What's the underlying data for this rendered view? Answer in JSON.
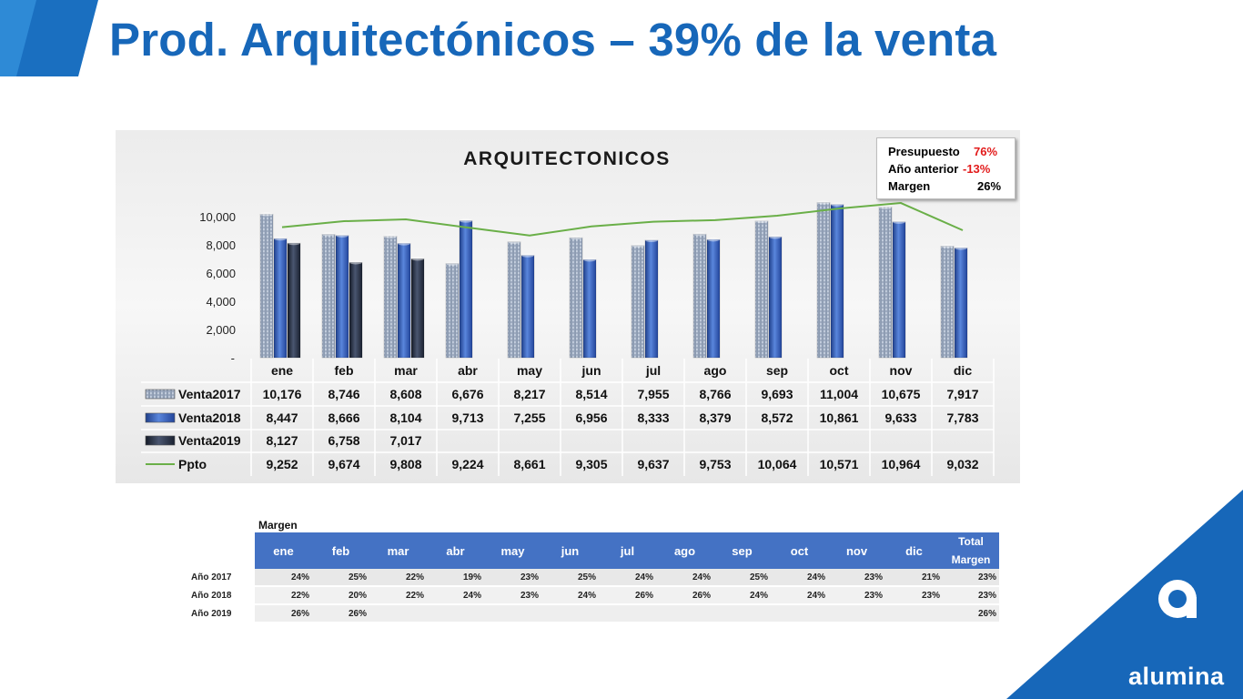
{
  "slide": {
    "title": "Prod. Arquitectónicos – 39% de la venta"
  },
  "kpi": {
    "rows": [
      {
        "label": "Presupuesto",
        "value": "76%",
        "value_color": "#e21b1b"
      },
      {
        "label": "Año anterior",
        "value": "-13%",
        "value_color": "#e21b1b"
      },
      {
        "label": "Margen",
        "value": "26%",
        "value_color": "#000000"
      }
    ]
  },
  "chart_data": {
    "type": "bar",
    "title": "ARQUITECTONICOS",
    "categories": [
      "ene",
      "feb",
      "mar",
      "abr",
      "may",
      "jun",
      "jul",
      "ago",
      "sep",
      "oct",
      "nov",
      "dic"
    ],
    "series": [
      {
        "name": "Venta2017",
        "kind": "bar",
        "color": "#9fb0c9",
        "values": [
          10176,
          8746,
          8608,
          6676,
          8217,
          8514,
          7955,
          8766,
          9693,
          11004,
          10675,
          7917
        ],
        "labels": [
          "10,176",
          "8,746",
          "8,608",
          "6,676",
          "8,217",
          "8,514",
          "7,955",
          "8,766",
          "9,693",
          "11,004",
          "10,675",
          "7,917"
        ]
      },
      {
        "name": "Venta2018",
        "kind": "bar",
        "color": "#3d68c2",
        "values": [
          8447,
          8666,
          8104,
          9713,
          7255,
          6956,
          8333,
          8379,
          8572,
          10861,
          9633,
          7783
        ],
        "labels": [
          "8,447",
          "8,666",
          "8,104",
          "9,713",
          "7,255",
          "6,956",
          "8,333",
          "8,379",
          "8,572",
          "10,861",
          "9,633",
          "7,783"
        ]
      },
      {
        "name": "Venta2019",
        "kind": "bar",
        "color": "#2a3345",
        "values": [
          8127,
          6758,
          7017,
          null,
          null,
          null,
          null,
          null,
          null,
          null,
          null,
          null
        ],
        "labels": [
          "8,127",
          "6,758",
          "7,017",
          "",
          "",
          "",
          "",
          "",
          "",
          "",
          "",
          ""
        ]
      },
      {
        "name": "Ppto",
        "kind": "line",
        "color": "#6aaf48",
        "values": [
          9252,
          9674,
          9808,
          9224,
          8661,
          9305,
          9637,
          9753,
          10064,
          10571,
          10964,
          9032
        ],
        "labels": [
          "9,252",
          "9,674",
          "9,808",
          "9,224",
          "8,661",
          "9,305",
          "9,637",
          "9,753",
          "10,064",
          "10,571",
          "10,964",
          "9,032"
        ]
      }
    ],
    "yaxis": {
      "ticks": [
        0,
        2000,
        4000,
        6000,
        8000,
        10000
      ],
      "tick_labels": [
        "-",
        "2,000",
        "4,000",
        "6,000",
        "8,000",
        "10,000"
      ],
      "ylim": [
        0,
        11000
      ]
    },
    "grid": false,
    "legend_placement": "data-table"
  },
  "margin": {
    "title": "Margen",
    "headers": [
      "ene",
      "feb",
      "mar",
      "abr",
      "may",
      "jun",
      "jul",
      "ago",
      "sep",
      "oct",
      "nov",
      "dic"
    ],
    "total_header": [
      "Total",
      "Margen"
    ],
    "rows": [
      {
        "label": "Año 2017",
        "values": [
          "24%",
          "25%",
          "22%",
          "19%",
          "23%",
          "25%",
          "24%",
          "24%",
          "25%",
          "24%",
          "23%",
          "21%"
        ],
        "total": "23%"
      },
      {
        "label": "Año 2018",
        "values": [
          "22%",
          "20%",
          "22%",
          "24%",
          "23%",
          "24%",
          "26%",
          "26%",
          "24%",
          "24%",
          "23%",
          "23%"
        ],
        "total": "23%"
      },
      {
        "label": "Año 2019",
        "values": [
          "26%",
          "26%",
          "",
          "",
          "",
          "",
          "",
          "",
          "",
          "",
          "",
          ""
        ],
        "total": "26%"
      }
    ]
  },
  "logo": {
    "text": "alumina",
    "color": "#1767b9"
  }
}
